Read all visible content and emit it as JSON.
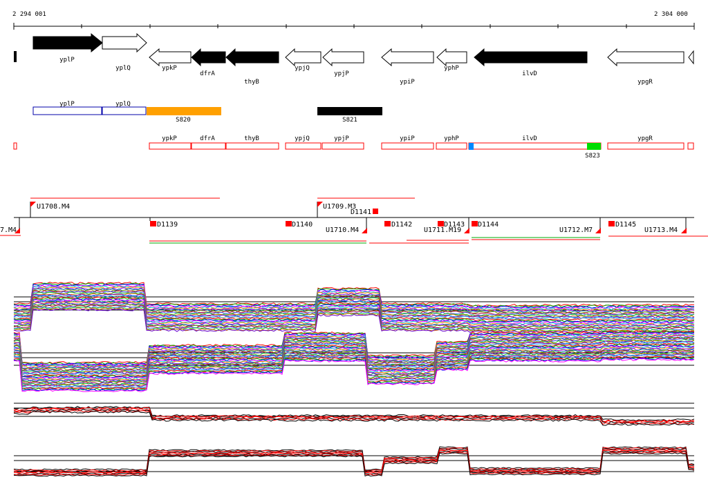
{
  "coords": {
    "start": "2 294 001",
    "end": "2 304 000"
  },
  "genes": [
    "yplP",
    "yplQ",
    "ypkP",
    "dfrA",
    "thyB",
    "ypjQ",
    "ypjP",
    "ypiP",
    "yphP",
    "ilvD",
    "ypgR"
  ],
  "segments": [
    "S820",
    "S821",
    "S823"
  ],
  "markers_upper": [
    "U1708.M4",
    "U1709.M3",
    "D1141"
  ],
  "markers_lower": [
    "7.M4",
    "D1139",
    "D1140",
    "U1710.M4",
    "D1142",
    "D1143",
    "U1711.M19",
    "D1144",
    "U1712.M7",
    "D1145",
    "U1713.M4"
  ],
  "colors": {
    "fill": "#000000",
    "outline": "#ff0000",
    "box_blue": "#0000aa",
    "orange": "#ffa000",
    "green": "#00dd00",
    "blue": "#0088ff"
  }
}
